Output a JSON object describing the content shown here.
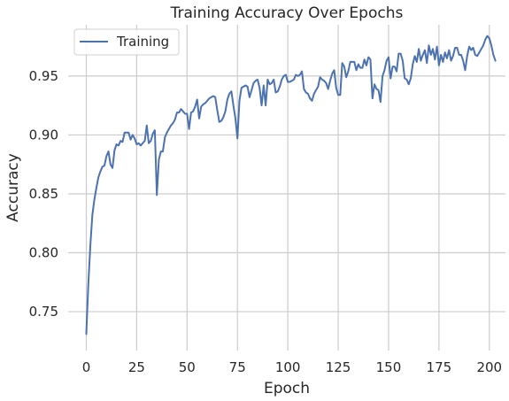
{
  "chart_data": {
    "type": "line",
    "title": "Training Accuracy Over Epochs",
    "xlabel": "Epoch",
    "ylabel": "Accuracy",
    "xlim": [
      -9,
      208
    ],
    "ylim": [
      0.717,
      0.9935
    ],
    "x_ticks": [
      0,
      25,
      50,
      75,
      100,
      125,
      150,
      175,
      200
    ],
    "y_ticks": [
      0.75,
      0.8,
      0.85,
      0.9,
      0.95
    ],
    "y_tick_labels": [
      "0.75",
      "0.80",
      "0.85",
      "0.90",
      "0.95"
    ],
    "grid": true,
    "legend_position": "top-left",
    "series": [
      {
        "name": "Training",
        "color": "#4c72b0",
        "points": [
          [
            0,
            0.731
          ],
          [
            1,
            0.773
          ],
          [
            2,
            0.806
          ],
          [
            3,
            0.832
          ],
          [
            4,
            0.845
          ],
          [
            5,
            0.855
          ],
          [
            6,
            0.864
          ],
          [
            7,
            0.869
          ],
          [
            8,
            0.873
          ],
          [
            9,
            0.874
          ],
          [
            10,
            0.882
          ],
          [
            11,
            0.886
          ],
          [
            12,
            0.875
          ],
          [
            13,
            0.872
          ],
          [
            14,
            0.887
          ],
          [
            15,
            0.892
          ],
          [
            16,
            0.891
          ],
          [
            17,
            0.895
          ],
          [
            18,
            0.894
          ],
          [
            19,
            0.902
          ],
          [
            20,
            0.902
          ],
          [
            21,
            0.902
          ],
          [
            22,
            0.896
          ],
          [
            23,
            0.9
          ],
          [
            24,
            0.897
          ],
          [
            25,
            0.892
          ],
          [
            26,
            0.893
          ],
          [
            27,
            0.891
          ],
          [
            28,
            0.893
          ],
          [
            29,
            0.895
          ],
          [
            30,
            0.908
          ],
          [
            31,
            0.893
          ],
          [
            32,
            0.895
          ],
          [
            33,
            0.901
          ],
          [
            34,
            0.904
          ],
          [
            35,
            0.849
          ],
          [
            36,
            0.879
          ],
          [
            37,
            0.886
          ],
          [
            38,
            0.886
          ],
          [
            39,
            0.898
          ],
          [
            40,
            0.902
          ],
          [
            41,
            0.905
          ],
          [
            42,
            0.908
          ],
          [
            43,
            0.91
          ],
          [
            44,
            0.913
          ],
          [
            45,
            0.919
          ],
          [
            46,
            0.919
          ],
          [
            47,
            0.922
          ],
          [
            48,
            0.92
          ],
          [
            49,
            0.918
          ],
          [
            50,
            0.918
          ],
          [
            51,
            0.905
          ],
          [
            52,
            0.919
          ],
          [
            53,
            0.92
          ],
          [
            54,
            0.924
          ],
          [
            55,
            0.93
          ],
          [
            56,
            0.914
          ],
          [
            57,
            0.924
          ],
          [
            58,
            0.926
          ],
          [
            59,
            0.927
          ],
          [
            60,
            0.929
          ],
          [
            61,
            0.931
          ],
          [
            62,
            0.932
          ],
          [
            63,
            0.933
          ],
          [
            64,
            0.932
          ],
          [
            65,
            0.921
          ],
          [
            66,
            0.911
          ],
          [
            67,
            0.912
          ],
          [
            68,
            0.915
          ],
          [
            69,
            0.92
          ],
          [
            70,
            0.93
          ],
          [
            71,
            0.935
          ],
          [
            72,
            0.937
          ],
          [
            73,
            0.925
          ],
          [
            74,
            0.914
          ],
          [
            75,
            0.897
          ],
          [
            76,
            0.929
          ],
          [
            77,
            0.94
          ],
          [
            78,
            0.941
          ],
          [
            79,
            0.942
          ],
          [
            80,
            0.941
          ],
          [
            81,
            0.932
          ],
          [
            82,
            0.938
          ],
          [
            83,
            0.944
          ],
          [
            84,
            0.946
          ],
          [
            85,
            0.947
          ],
          [
            86,
            0.94
          ],
          [
            87,
            0.925
          ],
          [
            88,
            0.942
          ],
          [
            89,
            0.925
          ],
          [
            90,
            0.947
          ],
          [
            91,
            0.943
          ],
          [
            92,
            0.944
          ],
          [
            93,
            0.947
          ],
          [
            94,
            0.936
          ],
          [
            95,
            0.937
          ],
          [
            96,
            0.941
          ],
          [
            97,
            0.947
          ],
          [
            98,
            0.95
          ],
          [
            99,
            0.951
          ],
          [
            100,
            0.945
          ],
          [
            101,
            0.945
          ],
          [
            102,
            0.946
          ],
          [
            103,
            0.947
          ],
          [
            104,
            0.951
          ],
          [
            105,
            0.95
          ],
          [
            106,
            0.951
          ],
          [
            107,
            0.954
          ],
          [
            108,
            0.939
          ],
          [
            109,
            0.936
          ],
          [
            110,
            0.935
          ],
          [
            111,
            0.931
          ],
          [
            112,
            0.929
          ],
          [
            113,
            0.935
          ],
          [
            114,
            0.938
          ],
          [
            115,
            0.941
          ],
          [
            116,
            0.949
          ],
          [
            117,
            0.947
          ],
          [
            118,
            0.946
          ],
          [
            119,
            0.944
          ],
          [
            120,
            0.939
          ],
          [
            121,
            0.946
          ],
          [
            122,
            0.952
          ],
          [
            123,
            0.955
          ],
          [
            124,
            0.94
          ],
          [
            125,
            0.934
          ],
          [
            126,
            0.934
          ],
          [
            127,
            0.961
          ],
          [
            128,
            0.958
          ],
          [
            129,
            0.949
          ],
          [
            130,
            0.954
          ],
          [
            131,
            0.962
          ],
          [
            132,
            0.962
          ],
          [
            133,
            0.962
          ],
          [
            134,
            0.955
          ],
          [
            135,
            0.96
          ],
          [
            136,
            0.957
          ],
          [
            137,
            0.957
          ],
          [
            138,
            0.964
          ],
          [
            139,
            0.959
          ],
          [
            140,
            0.966
          ],
          [
            141,
            0.964
          ],
          [
            142,
            0.931
          ],
          [
            143,
            0.943
          ],
          [
            144,
            0.939
          ],
          [
            145,
            0.938
          ],
          [
            146,
            0.928
          ],
          [
            147,
            0.95
          ],
          [
            148,
            0.955
          ],
          [
            149,
            0.963
          ],
          [
            150,
            0.966
          ],
          [
            151,
            0.948
          ],
          [
            152,
            0.958
          ],
          [
            153,
            0.958
          ],
          [
            154,
            0.954
          ],
          [
            155,
            0.969
          ],
          [
            156,
            0.969
          ],
          [
            157,
            0.963
          ],
          [
            158,
            0.948
          ],
          [
            159,
            0.947
          ],
          [
            160,
            0.943
          ],
          [
            161,
            0.948
          ],
          [
            162,
            0.96
          ],
          [
            163,
            0.967
          ],
          [
            164,
            0.962
          ],
          [
            165,
            0.973
          ],
          [
            166,
            0.963
          ],
          [
            167,
            0.968
          ],
          [
            168,
            0.972
          ],
          [
            169,
            0.961
          ],
          [
            170,
            0.976
          ],
          [
            171,
            0.968
          ],
          [
            172,
            0.973
          ],
          [
            173,
            0.964
          ],
          [
            174,
            0.975
          ],
          [
            175,
            0.959
          ],
          [
            176,
            0.968
          ],
          [
            177,
            0.962
          ],
          [
            178,
            0.97
          ],
          [
            179,
            0.965
          ],
          [
            180,
            0.972
          ],
          [
            181,
            0.963
          ],
          [
            182,
            0.967
          ],
          [
            183,
            0.974
          ],
          [
            184,
            0.974
          ],
          [
            185,
            0.968
          ],
          [
            186,
            0.968
          ],
          [
            187,
            0.963
          ],
          [
            188,
            0.955
          ],
          [
            189,
            0.967
          ],
          [
            190,
            0.975
          ],
          [
            191,
            0.972
          ],
          [
            192,
            0.974
          ],
          [
            193,
            0.968
          ],
          [
            194,
            0.967
          ],
          [
            195,
            0.97
          ],
          [
            196,
            0.973
          ],
          [
            197,
            0.976
          ],
          [
            198,
            0.981
          ],
          [
            199,
            0.984
          ],
          [
            200,
            0.982
          ],
          [
            201,
            0.976
          ],
          [
            202,
            0.968
          ],
          [
            203,
            0.963
          ]
        ]
      }
    ]
  }
}
